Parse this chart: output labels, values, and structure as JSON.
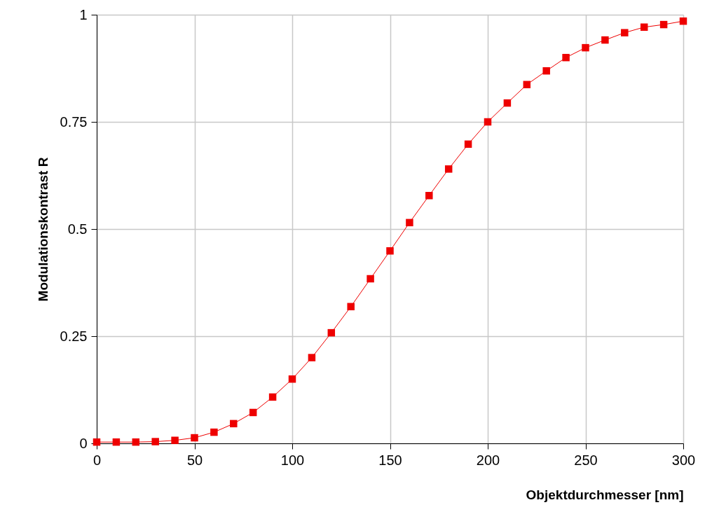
{
  "chart_data": {
    "type": "line",
    "xlabel": "Objektdurchmesser [nm]",
    "ylabel": "Modulationskontrast R",
    "x": [
      0,
      10,
      20,
      30,
      40,
      50,
      60,
      70,
      80,
      90,
      100,
      110,
      120,
      130,
      140,
      150,
      160,
      170,
      180,
      190,
      200,
      210,
      220,
      230,
      240,
      250,
      260,
      270,
      280,
      290,
      300
    ],
    "series": [
      {
        "color": "#ee0000",
        "values": [
          0.003,
          0.003,
          0.003,
          0.004,
          0.007,
          0.013,
          0.026,
          0.046,
          0.072,
          0.108,
          0.15,
          0.2,
          0.258,
          0.319,
          0.384,
          0.449,
          0.515,
          0.578,
          0.64,
          0.698,
          0.75,
          0.794,
          0.837,
          0.869,
          0.9,
          0.923,
          0.941,
          0.958,
          0.971,
          0.977,
          0.985
        ]
      }
    ],
    "xlim": [
      0,
      300
    ],
    "xticks": [
      0,
      50,
      100,
      150,
      200,
      250,
      300
    ],
    "ylim": [
      0,
      1
    ],
    "yticks": [
      0,
      0.25,
      0.5,
      0.75,
      1
    ],
    "grid": true,
    "marker": "square",
    "line_style": "solid"
  }
}
